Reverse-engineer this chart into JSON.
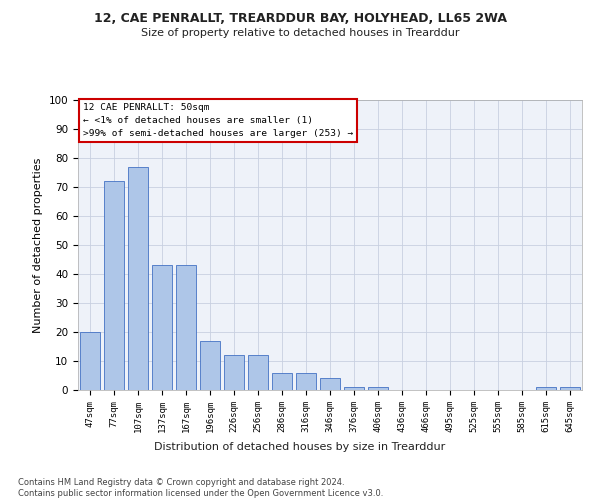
{
  "title1": "12, CAE PENRALLT, TREARDDUR BAY, HOLYHEAD, LL65 2WA",
  "title2": "Size of property relative to detached houses in Trearddur",
  "xlabel": "Distribution of detached houses by size in Trearddur",
  "ylabel": "Number of detached properties",
  "bar_labels": [
    "47sqm",
    "77sqm",
    "107sqm",
    "137sqm",
    "167sqm",
    "196sqm",
    "226sqm",
    "256sqm",
    "286sqm",
    "316sqm",
    "346sqm",
    "376sqm",
    "406sqm",
    "436sqm",
    "466sqm",
    "495sqm",
    "525sqm",
    "555sqm",
    "585sqm",
    "615sqm",
    "645sqm"
  ],
  "bar_values": [
    20,
    72,
    77,
    43,
    43,
    17,
    12,
    12,
    6,
    6,
    4,
    1,
    1,
    0,
    0,
    0,
    0,
    0,
    0,
    1,
    1
  ],
  "bar_color": "#aec6e8",
  "bar_edge_color": "#4472c4",
  "annotation_text": "12 CAE PENRALLT: 50sqm\n← <1% of detached houses are smaller (1)\n>99% of semi-detached houses are larger (253) →",
  "annotation_box_color": "#ffffff",
  "annotation_box_edge": "#cc0000",
  "ylim": [
    0,
    100
  ],
  "yticks": [
    0,
    10,
    20,
    30,
    40,
    50,
    60,
    70,
    80,
    90,
    100
  ],
  "footnote": "Contains HM Land Registry data © Crown copyright and database right 2024.\nContains public sector information licensed under the Open Government Licence v3.0.",
  "bg_color": "#eef2f9",
  "grid_color": "#c8d0e0"
}
